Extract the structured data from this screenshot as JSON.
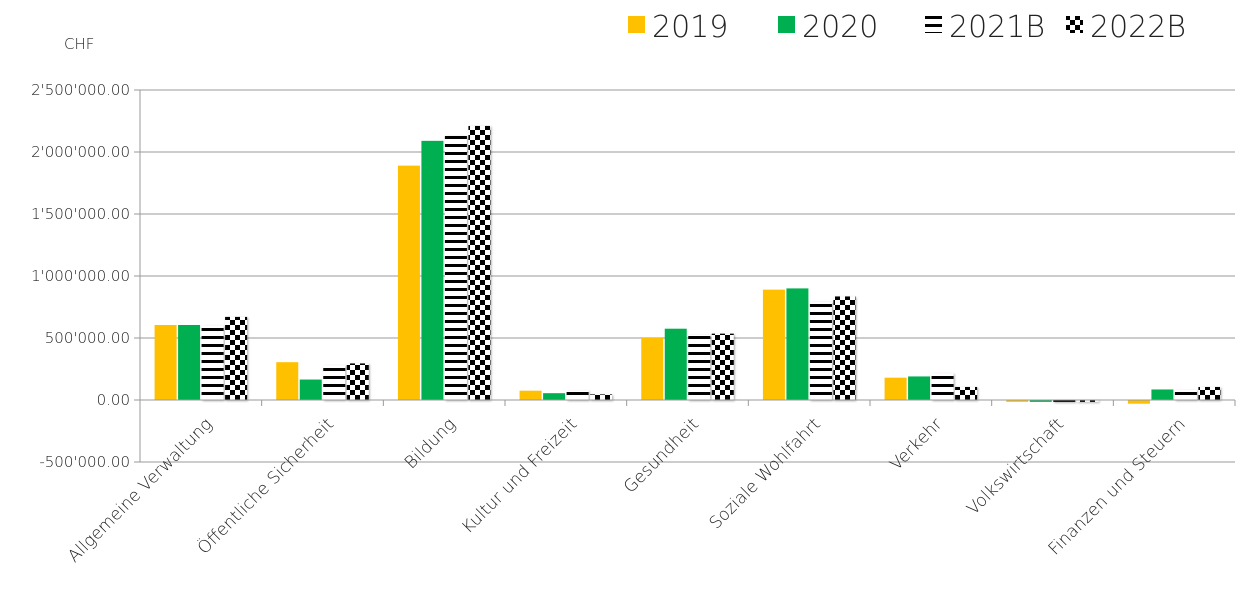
{
  "chart_data": {
    "type": "bar",
    "unit_label": "CHF",
    "categories": [
      "Allgemeine Verwaltung",
      "Öffentliche Sicherheit",
      "Bildung",
      "Kultur und Freizeit",
      "Gesundheit",
      "Soziale Wohlfahrt",
      "Verkehr",
      "Volkswirtschaft",
      "Finanzen und Steuern"
    ],
    "series": [
      {
        "name": "2019",
        "color": "#FFC000",
        "pattern": "solid",
        "values": [
          605000,
          305000,
          1890000,
          75000,
          500000,
          890000,
          180000,
          -15000,
          -30000
        ]
      },
      {
        "name": "2020",
        "color": "#00B050",
        "pattern": "solid",
        "values": [
          605000,
          165000,
          2090000,
          55000,
          575000,
          900000,
          190000,
          -15000,
          85000
        ]
      },
      {
        "name": "2021B",
        "color": "#000000",
        "pattern": "horizontal-lines",
        "values": [
          600000,
          280000,
          2130000,
          75000,
          525000,
          790000,
          215000,
          -15000,
          80000
        ]
      },
      {
        "name": "2022B",
        "color": "#000000",
        "pattern": "checkerboard",
        "values": [
          670000,
          295000,
          2210000,
          45000,
          535000,
          835000,
          105000,
          -15000,
          105000
        ]
      }
    ],
    "ylim": [
      -500000,
      2500000
    ],
    "yticks": [
      -500000,
      0,
      500000,
      1000000,
      1500000,
      2000000,
      2500000
    ],
    "ytick_labels": [
      "-500'000.00",
      "0.00",
      "500'000.00",
      "1'000'000.00",
      "1'500'000.00",
      "2'000'000.00",
      "2'500'000.00"
    ],
    "grid": true,
    "legend_position": "top-right"
  }
}
